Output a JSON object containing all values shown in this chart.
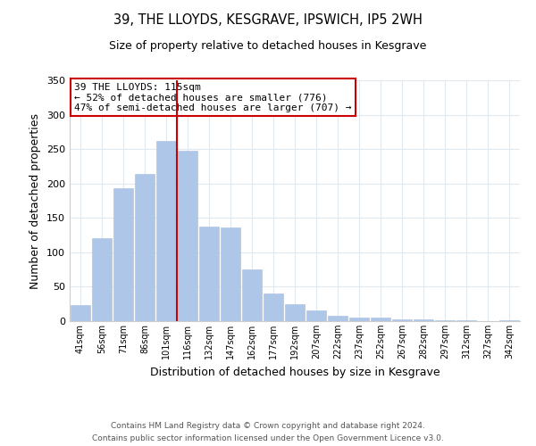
{
  "title": "39, THE LLOYDS, KESGRAVE, IPSWICH, IP5 2WH",
  "subtitle": "Size of property relative to detached houses in Kesgrave",
  "xlabel": "Distribution of detached houses by size in Kesgrave",
  "ylabel": "Number of detached properties",
  "bar_labels": [
    "41sqm",
    "56sqm",
    "71sqm",
    "86sqm",
    "101sqm",
    "116sqm",
    "132sqm",
    "147sqm",
    "162sqm",
    "177sqm",
    "192sqm",
    "207sqm",
    "222sqm",
    "237sqm",
    "252sqm",
    "267sqm",
    "282sqm",
    "297sqm",
    "312sqm",
    "327sqm",
    "342sqm"
  ],
  "bar_values": [
    23,
    120,
    193,
    214,
    262,
    248,
    138,
    136,
    75,
    40,
    25,
    16,
    8,
    5,
    5,
    2,
    2,
    1,
    1,
    0,
    1
  ],
  "bar_color": "#aec6e8",
  "bar_edge_color": "#aec6e8",
  "highlight_line_color": "#cc0000",
  "ylim": [
    0,
    350
  ],
  "yticks": [
    0,
    50,
    100,
    150,
    200,
    250,
    300,
    350
  ],
  "annotation_title": "39 THE LLOYDS: 115sqm",
  "annotation_line1": "← 52% of detached houses are smaller (776)",
  "annotation_line2": "47% of semi-detached houses are larger (707) →",
  "annotation_box_color": "#ffffff",
  "annotation_box_edge": "#cc0000",
  "footer_line1": "Contains HM Land Registry data © Crown copyright and database right 2024.",
  "footer_line2": "Contains public sector information licensed under the Open Government Licence v3.0.",
  "background_color": "#ffffff",
  "grid_color": "#e0e8f0"
}
